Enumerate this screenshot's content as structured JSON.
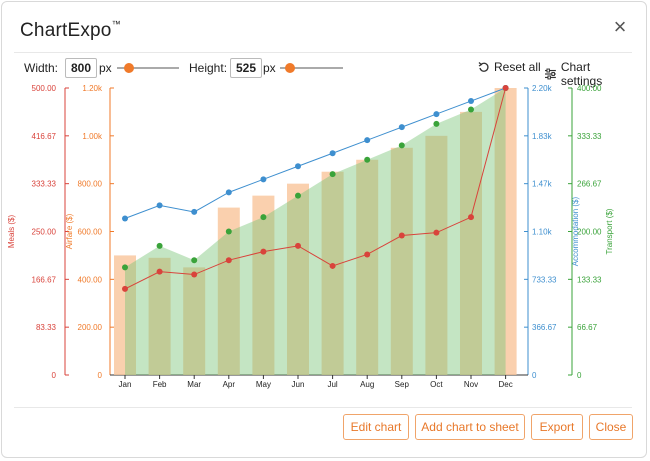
{
  "window": {
    "title": "ChartExpo",
    "trademark": "™"
  },
  "controls": {
    "width_label": "Width:",
    "width_value": "800",
    "width_unit": "px",
    "height_label": "Height:",
    "height_value": "525",
    "height_unit": "px",
    "reset_label": "Reset all",
    "settings_label": "Chart settings"
  },
  "footer": {
    "edit": "Edit chart",
    "add": "Add chart to sheet",
    "export": "Export",
    "close": "Close"
  },
  "colors": {
    "meals": "#d9433b",
    "airfare": "#f07a2a",
    "accommodation": "#3e8fcf",
    "transport": "#3aa33a",
    "accent": "#e8782a"
  },
  "chart_data": {
    "type": "bar",
    "categories": [
      "Jan",
      "Feb",
      "Mar",
      "Apr",
      "May",
      "Jun",
      "Jul",
      "Aug",
      "Sep",
      "Oct",
      "Nov",
      "Dec"
    ],
    "axes": {
      "meals": {
        "label": "Meals ($)",
        "ticks": [
          "500.00",
          "416.67",
          "333.33",
          "250.00",
          "166.67",
          "83.33",
          "0"
        ],
        "range": [
          0,
          500
        ]
      },
      "airfare": {
        "label": "Airfare ($)",
        "ticks": [
          "1.20k",
          "1.00k",
          "800.00",
          "600.00",
          "400.00",
          "200.00",
          "0"
        ],
        "range": [
          0,
          1200
        ]
      },
      "accommodation": {
        "label": "Accommodation ($)",
        "ticks": [
          "2.20k",
          "1.83k",
          "1.47k",
          "1.10k",
          "733.33",
          "366.67",
          "0"
        ],
        "range": [
          0,
          2200
        ]
      },
      "transport": {
        "label": "Transport ($)",
        "ticks": [
          "400.00",
          "333.33",
          "266.67",
          "200.00",
          "133.33",
          "66.67",
          "0"
        ],
        "range": [
          0,
          400
        ]
      }
    },
    "series": [
      {
        "name": "Airfare ($)",
        "kind": "bar",
        "values": [
          500,
          490,
          450,
          700,
          750,
          800,
          850,
          900,
          950,
          1000,
          1100,
          1200
        ]
      },
      {
        "name": "Transport ($)",
        "kind": "area",
        "values": [
          150,
          180,
          160,
          200,
          220,
          250,
          280,
          300,
          320,
          350,
          370,
          400
        ]
      },
      {
        "name": "Meals ($)",
        "kind": "line",
        "values": [
          150,
          180,
          175,
          200,
          215,
          225,
          190,
          210,
          243,
          248,
          275,
          500
        ]
      },
      {
        "name": "Accommodation ($)",
        "kind": "line",
        "values": [
          1200,
          1300,
          1250,
          1400,
          1500,
          1600,
          1700,
          1800,
          1900,
          2000,
          2100,
          2200
        ]
      }
    ]
  }
}
